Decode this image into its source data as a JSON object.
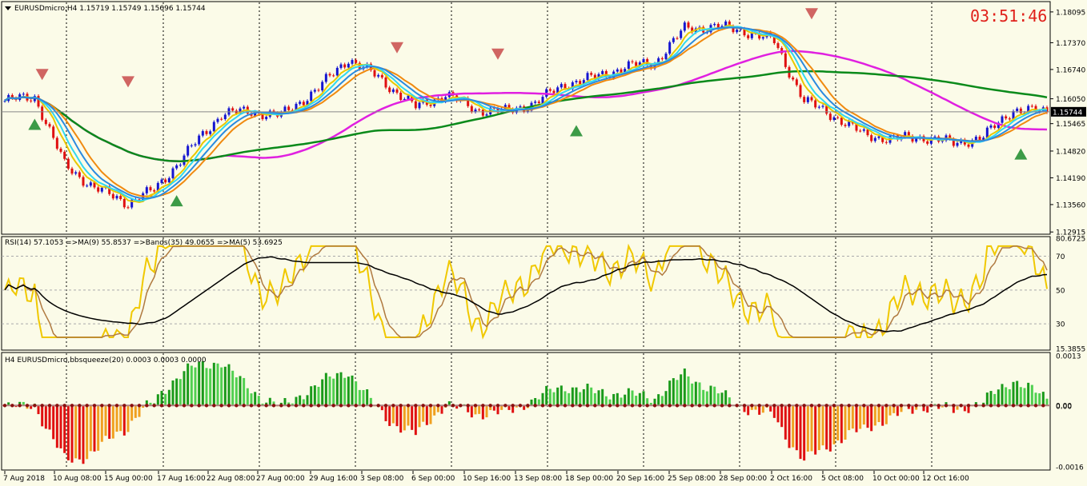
{
  "window": {
    "header": "EURUSDmicro,H4  1.15719 1.15749 1.15696 1.15744",
    "clock": "03:51:46"
  },
  "colors": {
    "bull": "#1515d0",
    "bear": "#e01010",
    "ma_magenta": "#e020e0",
    "ma_green": "#0a8a1a",
    "ma_orange": "#f08a10",
    "ma_yellow": "#e8c800",
    "ma_cyan": "#30d8f0",
    "ma_blue": "#2a8ae0",
    "rsi_yellow": "#f0c800",
    "rsi_brown": "#b07a40",
    "rsi_black": "#000000",
    "hist_green_dark": "#1a9a1a",
    "hist_green_light": "#50d050",
    "hist_red": "#e01010",
    "hist_orange": "#f0a020",
    "grid": "#000000"
  },
  "chart_data": [
    {
      "type": "candlestick",
      "title": "EURUSDmicro,H4  1.15719 1.15749 1.15696 1.15744",
      "ylim": [
        1.129,
        1.183
      ],
      "ticks": [
        "1.18095",
        "1.17370",
        "1.16740",
        "1.16050",
        "1.15465",
        "1.14820",
        "1.14190",
        "1.13560",
        "1.12915"
      ],
      "last_price": "1.15744",
      "x_labels": [
        "7 Aug 2018",
        "10 Aug 08:00",
        "15 Aug 00:00",
        "17 Aug 16:00",
        "22 Aug 08:00",
        "27 Aug 00:00",
        "29 Aug 16:00",
        "3 Sep 08:00",
        "6 Sep 00:00",
        "10 Sep 16:00",
        "13 Sep 08:00",
        "18 Sep 00:00",
        "20 Sep 16:00",
        "25 Sep 08:00",
        "28 Sep 00:00",
        "2 Oct 16:00",
        "5 Oct 08:00",
        "10 Oct 00:00",
        "12 Oct 16:00"
      ],
      "anchors": [
        {
          "bar": 0,
          "price": 1.16
        },
        {
          "bar": 8,
          "price": 1.161
        },
        {
          "bar": 16,
          "price": 1.145
        },
        {
          "bar": 24,
          "price": 1.1395
        },
        {
          "bar": 33,
          "price": 1.136
        },
        {
          "bar": 40,
          "price": 1.139
        },
        {
          "bar": 48,
          "price": 1.147
        },
        {
          "bar": 58,
          "price": 1.157
        },
        {
          "bar": 66,
          "price": 1.1575
        },
        {
          "bar": 74,
          "price": 1.1565
        },
        {
          "bar": 84,
          "price": 1.163
        },
        {
          "bar": 92,
          "price": 1.17
        },
        {
          "bar": 100,
          "price": 1.1655
        },
        {
          "bar": 110,
          "price": 1.1585
        },
        {
          "bar": 118,
          "price": 1.1615
        },
        {
          "bar": 126,
          "price": 1.158
        },
        {
          "bar": 134,
          "price": 1.1575
        },
        {
          "bar": 142,
          "price": 1.1595
        },
        {
          "bar": 150,
          "price": 1.164
        },
        {
          "bar": 158,
          "price": 1.1655
        },
        {
          "bar": 166,
          "price": 1.168
        },
        {
          "bar": 174,
          "price": 1.169
        },
        {
          "bar": 182,
          "price": 1.177
        },
        {
          "bar": 190,
          "price": 1.1775
        },
        {
          "bar": 198,
          "price": 1.1765
        },
        {
          "bar": 206,
          "price": 1.174
        },
        {
          "bar": 214,
          "price": 1.16
        },
        {
          "bar": 222,
          "price": 1.1565
        },
        {
          "bar": 230,
          "price": 1.152
        },
        {
          "bar": 238,
          "price": 1.151
        },
        {
          "bar": 246,
          "price": 1.1515
        },
        {
          "bar": 254,
          "price": 1.15
        },
        {
          "bar": 262,
          "price": 1.1515
        },
        {
          "bar": 270,
          "price": 1.158
        },
        {
          "bar": 278,
          "price": 1.1574
        }
      ]
    },
    {
      "type": "line",
      "title": "RSI(14) 57.1053  =>MA(9) 55.8537  =>Bands(35) 49.0655  =>MA(5) 53.6925",
      "ylim": [
        15.3855,
        80.6725
      ],
      "ticks": [
        "80.6725",
        "70",
        "50",
        "30",
        "15.3855"
      ],
      "levels": [
        70,
        50,
        30
      ]
    },
    {
      "type": "bar",
      "title": "H4 EURUSDmicro,bbsqueeze(20) 0.0003 0.0003 0.0000",
      "ylim": [
        -0.0016,
        0.0013
      ],
      "ticks": [
        "0.0013",
        "0.00",
        "0.00",
        "-0.0016"
      ]
    }
  ]
}
